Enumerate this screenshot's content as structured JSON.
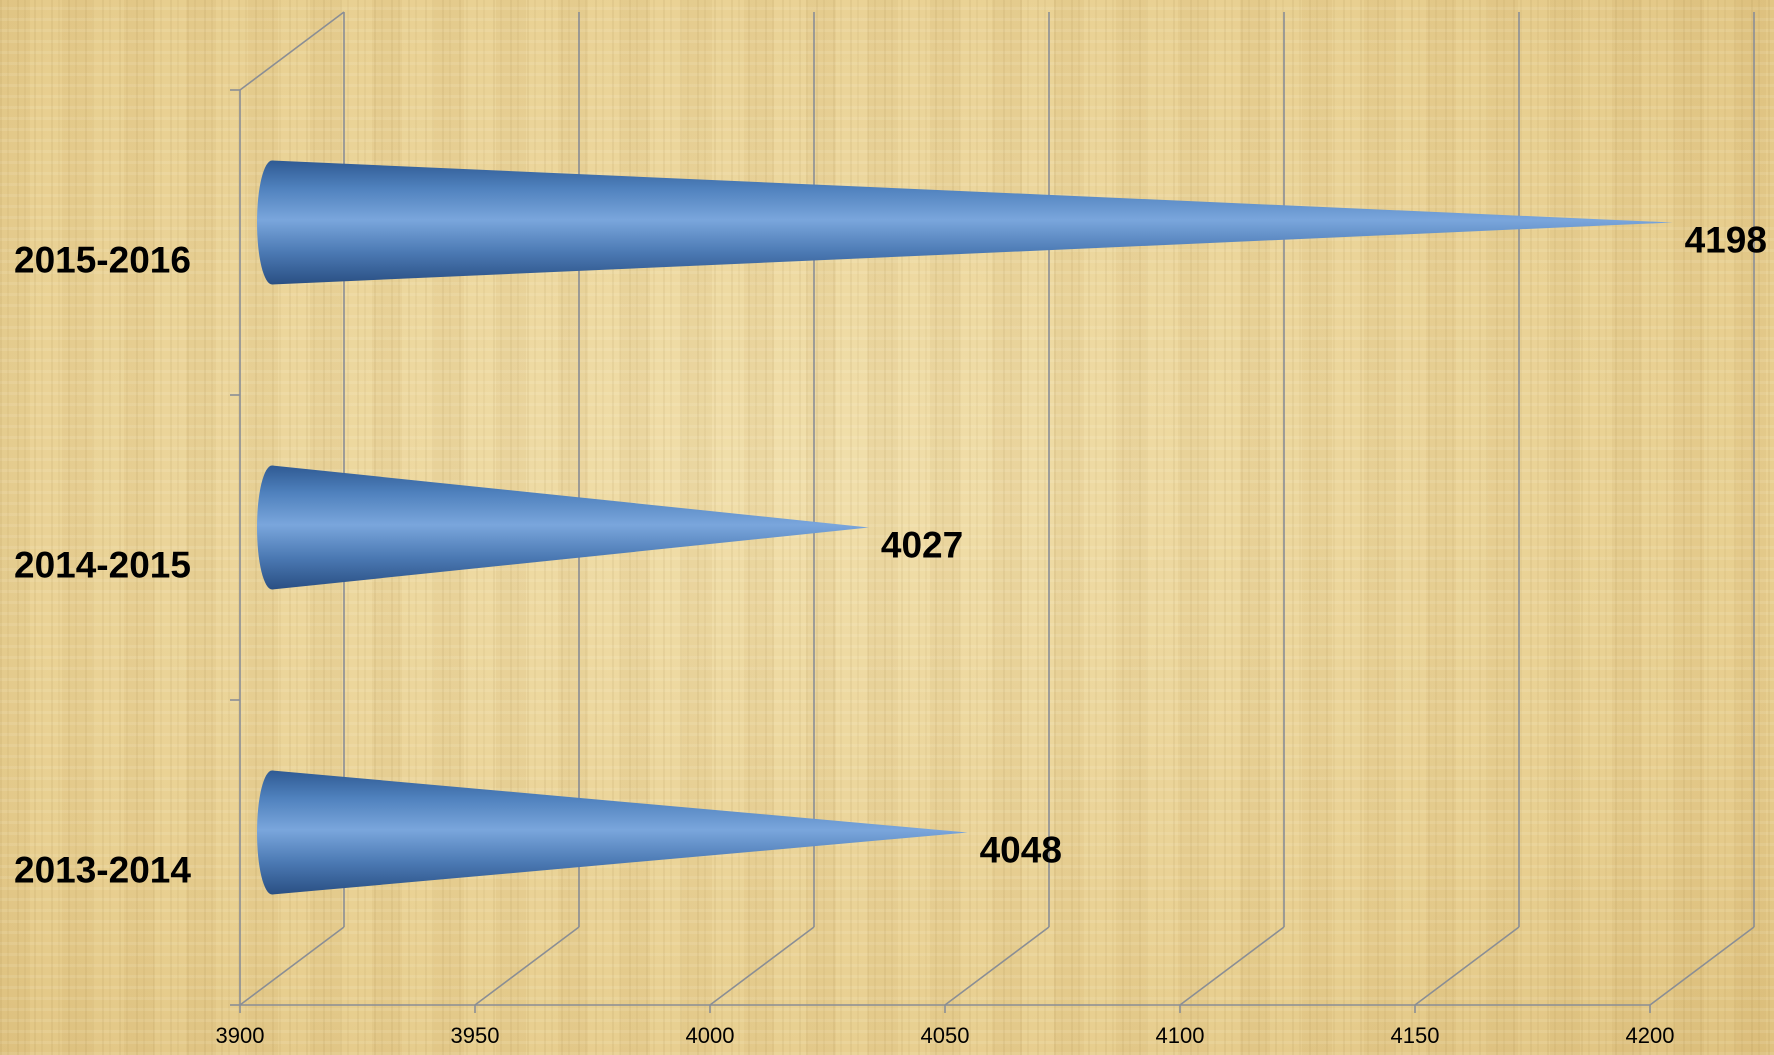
{
  "chart_data": {
    "type": "bar",
    "style": "3d-cone-horizontal",
    "categories": [
      "2013-2014",
      "2014-2015",
      "2015-2016"
    ],
    "values": [
      4048,
      4027,
      4198
    ],
    "data_labels": [
      "4048",
      "4027",
      "4198"
    ],
    "xlim": [
      3900,
      4200
    ],
    "x_ticks": [
      "3900",
      "3950",
      "4000",
      "4050",
      "4100",
      "4150",
      "4200"
    ],
    "title": "",
    "xlabel": "",
    "ylabel": "",
    "grid": true,
    "legend": "none",
    "bar_color": "#4f81bd",
    "background": "papyrus"
  }
}
